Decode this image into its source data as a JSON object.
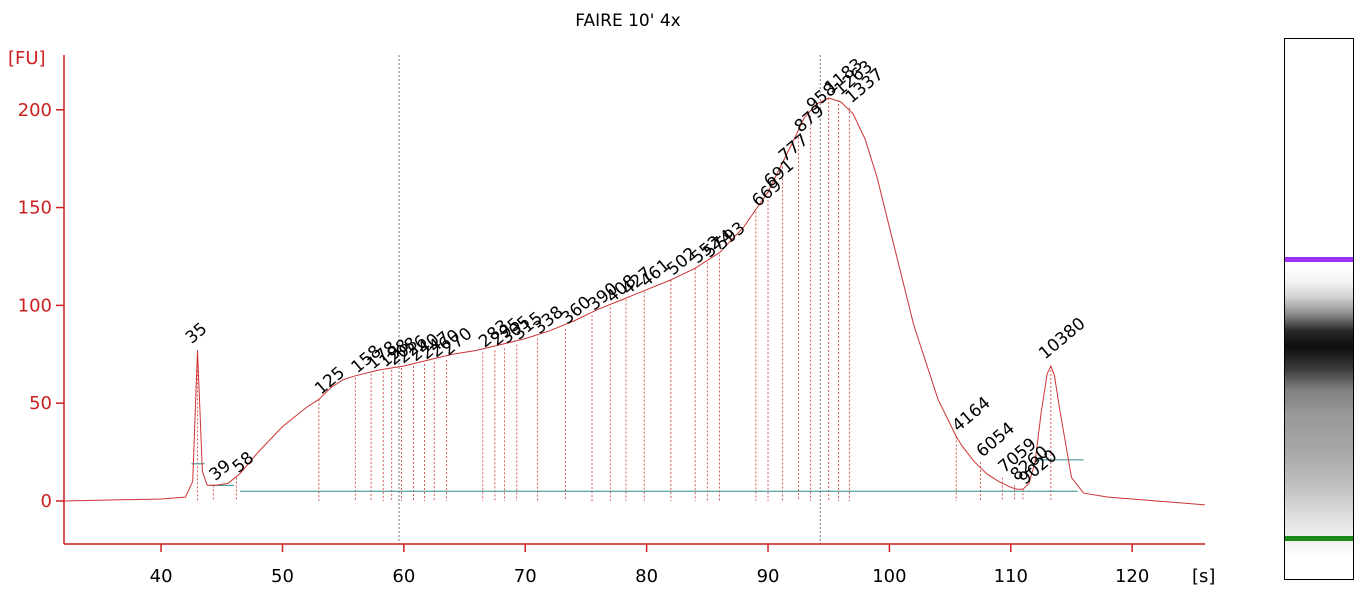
{
  "chart_data": {
    "type": "line",
    "title": "FAIRE 10' 4x",
    "xlabel": "[s]",
    "ylabel": "[FU]",
    "xlim": [
      32,
      126
    ],
    "ylim": [
      -22,
      228
    ],
    "xticks": [
      40,
      50,
      60,
      70,
      80,
      90,
      100,
      110,
      120
    ],
    "yticks": [
      0,
      50,
      100,
      150,
      200
    ],
    "grid": false,
    "colors": {
      "trace": "#cc3333",
      "axis": "#cc1f1f",
      "marker_low": "#1a8a1a",
      "marker_high": "#9b30ff",
      "baseline": "#2e8b8b"
    },
    "series": [
      {
        "x": [
          32,
          40,
          42,
          42.6,
          43.0,
          43.4,
          43.8,
          44.5,
          45.5,
          46.5,
          48,
          50,
          52,
          53,
          54,
          55,
          56,
          58,
          60,
          62,
          64,
          66,
          68,
          70,
          72,
          74,
          76,
          78,
          80,
          82,
          84,
          86,
          88,
          90,
          92,
          93,
          94,
          95,
          96,
          97,
          98,
          99,
          100,
          102,
          104,
          105.5,
          106,
          107,
          108,
          109,
          110,
          110.5,
          111,
          111.5,
          112,
          112.5,
          113,
          113.3,
          113.6,
          114,
          114.5,
          115,
          116,
          118,
          120,
          122,
          124,
          126
        ],
        "y": [
          0,
          1,
          2,
          10,
          77,
          15,
          8,
          8,
          9,
          14,
          25,
          38,
          48,
          52,
          58,
          62,
          64,
          67,
          69,
          72,
          75,
          77,
          80,
          83,
          87,
          92,
          98,
          103,
          108,
          113,
          119,
          127,
          140,
          158,
          183,
          196,
          203,
          206,
          204,
          198,
          185,
          165,
          140,
          90,
          52,
          33,
          28,
          20,
          14,
          10,
          7,
          6,
          6,
          9,
          20,
          45,
          65,
          69,
          64,
          48,
          30,
          12,
          4,
          2,
          1,
          0,
          -1,
          -2
        ]
      }
    ],
    "markers": [
      {
        "label": "35",
        "x": 43.0,
        "y": 77,
        "color": "#1a8a1a"
      },
      {
        "label": "10380",
        "x": 113.3,
        "y": 69,
        "color": "#9b30ff"
      }
    ],
    "peaks": [
      {
        "label": "39",
        "x": 44.3,
        "y": 8
      },
      {
        "label": "58",
        "x": 46.2,
        "y": 12
      },
      {
        "label": "125",
        "x": 53.0,
        "y": 52
      },
      {
        "label": "158",
        "x": 56.0,
        "y": 63
      },
      {
        "label": "178",
        "x": 57.3,
        "y": 65
      },
      {
        "label": "198",
        "x": 58.3,
        "y": 66
      },
      {
        "label": "208",
        "x": 59.0,
        "y": 67
      },
      {
        "label": "226",
        "x": 59.8,
        "y": 68
      },
      {
        "label": "240",
        "x": 60.8,
        "y": 69
      },
      {
        "label": "247",
        "x": 61.7,
        "y": 70
      },
      {
        "label": "260",
        "x": 62.5,
        "y": 71
      },
      {
        "label": "270",
        "x": 63.5,
        "y": 72
      },
      {
        "label": "283",
        "x": 66.5,
        "y": 76
      },
      {
        "label": "295",
        "x": 67.5,
        "y": 77
      },
      {
        "label": "305",
        "x": 68.3,
        "y": 78
      },
      {
        "label": "315",
        "x": 69.3,
        "y": 80
      },
      {
        "label": "338",
        "x": 71.0,
        "y": 83
      },
      {
        "label": "360",
        "x": 73.3,
        "y": 88
      },
      {
        "label": "390",
        "x": 75.5,
        "y": 95
      },
      {
        "label": "408",
        "x": 77.0,
        "y": 99
      },
      {
        "label": "427",
        "x": 78.3,
        "y": 103
      },
      {
        "label": "461",
        "x": 79.8,
        "y": 107
      },
      {
        "label": "502",
        "x": 82.0,
        "y": 113
      },
      {
        "label": "552",
        "x": 84.0,
        "y": 119
      },
      {
        "label": "574",
        "x": 85.0,
        "y": 122
      },
      {
        "label": "593",
        "x": 86.0,
        "y": 126
      },
      {
        "label": "669",
        "x": 89.0,
        "y": 148
      },
      {
        "label": "691",
        "x": 90.0,
        "y": 158
      },
      {
        "label": "777",
        "x": 91.2,
        "y": 171
      },
      {
        "label": "879",
        "x": 92.5,
        "y": 186
      },
      {
        "label": "958",
        "x": 93.5,
        "y": 197
      },
      {
        "label": "1183",
        "x": 95.0,
        "y": 206
      },
      {
        "label": "1263",
        "x": 95.8,
        "y": 205
      },
      {
        "label": "1337",
        "x": 96.7,
        "y": 201
      },
      {
        "label": "4164",
        "x": 105.5,
        "y": 33
      },
      {
        "label": "6054",
        "x": 107.5,
        "y": 20
      },
      {
        "label": "7059",
        "x": 109.3,
        "y": 12
      },
      {
        "label": "8260",
        "x": 110.3,
        "y": 8
      },
      {
        "label": "9020",
        "x": 111.0,
        "y": 6
      }
    ],
    "reference_lines_x": [
      59.6,
      94.3
    ],
    "gel": {
      "upper_marker_color": "#9b30ff",
      "lower_marker_color": "#1a8a1a"
    }
  }
}
